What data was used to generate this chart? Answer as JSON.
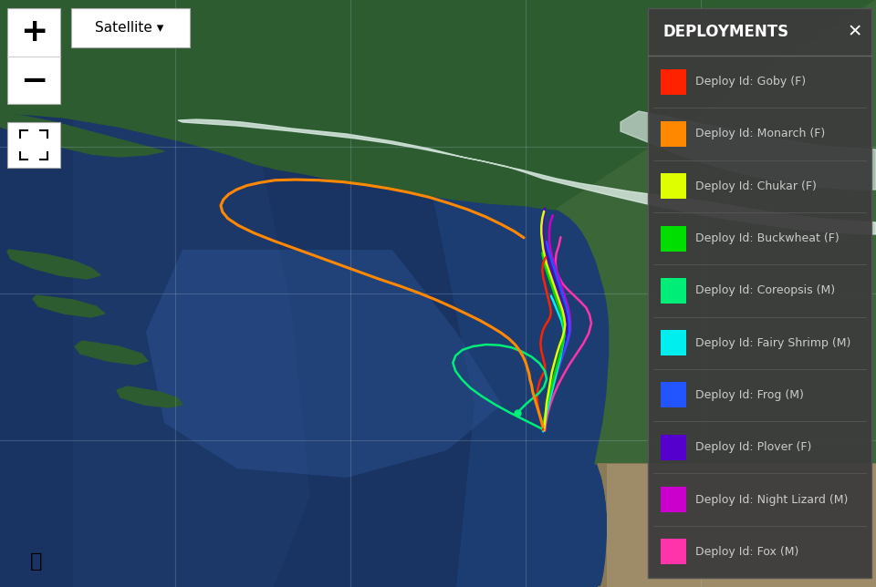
{
  "legend_bg": "#3c3c3c",
  "legend_text_color": "#cccccc",
  "legend_title_color": "#ffffff",
  "entries": [
    {
      "name": "Deploy Id: Goby (F)",
      "color": "#ff2200"
    },
    {
      "name": "Deploy Id: Monarch (F)",
      "color": "#ff8800"
    },
    {
      "name": "Deploy Id: Chukar (F)",
      "color": "#ddff00"
    },
    {
      "name": "Deploy Id: Buckwheat (F)",
      "color": "#00dd00"
    },
    {
      "name": "Deploy Id: Coreopsis (M)",
      "color": "#00ee77"
    },
    {
      "name": "Deploy Id: Fairy Shrimp (M)",
      "color": "#00eeee"
    },
    {
      "name": "Deploy Id: Frog (M)",
      "color": "#2255ff"
    },
    {
      "name": "Deploy Id: Plover (F)",
      "color": "#5500cc"
    },
    {
      "name": "Deploy Id: Night Lizard (M)",
      "color": "#cc00cc"
    },
    {
      "name": "Deploy Id: Fox (M)",
      "color": "#ff33aa"
    }
  ],
  "grid_color": "#aabbcc",
  "grid_alpha": 0.25,
  "ocean_dark": "#1a3a6c",
  "ocean_mid": "#1e4a80",
  "ocean_light": "#2a5a9a",
  "gulf_color": "#243f72",
  "land_ak_color": "#2d5c30",
  "land_bc_color": "#3a6638",
  "land_ca_color": "#8a7055",
  "snow_color": "#dde8e8",
  "ui_bg": "#ffffff",
  "ui_border": "#aaaaaa",
  "monarch_path": {
    "color": "#ff8800",
    "lw": 2.2,
    "x": [
      0.598,
      0.587,
      0.572,
      0.554,
      0.534,
      0.512,
      0.49,
      0.467,
      0.443,
      0.418,
      0.392,
      0.364,
      0.338,
      0.314,
      0.297,
      0.282,
      0.27,
      0.261,
      0.255,
      0.252,
      0.254,
      0.26,
      0.272,
      0.29,
      0.312,
      0.336,
      0.36,
      0.384,
      0.408,
      0.432,
      0.456,
      0.478,
      0.498,
      0.516,
      0.533,
      0.548,
      0.561,
      0.572,
      0.581,
      0.588,
      0.593,
      0.597,
      0.6,
      0.602,
      0.604,
      0.605,
      0.607,
      0.608,
      0.61,
      0.612,
      0.614,
      0.616,
      0.618,
      0.62
    ],
    "y": [
      0.595,
      0.606,
      0.618,
      0.631,
      0.643,
      0.654,
      0.664,
      0.672,
      0.679,
      0.685,
      0.69,
      0.693,
      0.694,
      0.693,
      0.689,
      0.684,
      0.677,
      0.669,
      0.66,
      0.65,
      0.639,
      0.628,
      0.616,
      0.603,
      0.59,
      0.577,
      0.564,
      0.551,
      0.538,
      0.525,
      0.513,
      0.501,
      0.489,
      0.477,
      0.465,
      0.454,
      0.443,
      0.433,
      0.423,
      0.413,
      0.403,
      0.393,
      0.383,
      0.373,
      0.363,
      0.353,
      0.343,
      0.333,
      0.323,
      0.313,
      0.303,
      0.293,
      0.283,
      0.273
    ]
  },
  "coreopsis_path": {
    "color": "#00ee77",
    "lw": 1.8,
    "x": [
      0.618,
      0.61,
      0.598,
      0.582,
      0.565,
      0.55,
      0.537,
      0.527,
      0.52,
      0.517,
      0.52,
      0.528,
      0.54,
      0.555,
      0.57,
      0.584,
      0.596,
      0.607,
      0.616,
      0.622,
      0.624,
      0.621,
      0.615,
      0.607,
      0.6,
      0.594,
      0.591
    ],
    "y": [
      0.27,
      0.276,
      0.285,
      0.297,
      0.311,
      0.325,
      0.339,
      0.354,
      0.368,
      0.382,
      0.394,
      0.404,
      0.41,
      0.413,
      0.412,
      0.408,
      0.401,
      0.392,
      0.381,
      0.368,
      0.354,
      0.341,
      0.33,
      0.32,
      0.311,
      0.302,
      0.296
    ]
  },
  "goby_path": {
    "color": "#ff2200",
    "lw": 1.8,
    "x": [
      0.62,
      0.618,
      0.616,
      0.614,
      0.613,
      0.614,
      0.616,
      0.619,
      0.622,
      0.622,
      0.62,
      0.618,
      0.617,
      0.618,
      0.62,
      0.623,
      0.626,
      0.628,
      0.629,
      0.628,
      0.626,
      0.624,
      0.622,
      0.62,
      0.619,
      0.62,
      0.623
    ],
    "y": [
      0.268,
      0.28,
      0.293,
      0.308,
      0.323,
      0.338,
      0.35,
      0.36,
      0.368,
      0.378,
      0.39,
      0.402,
      0.415,
      0.427,
      0.438,
      0.447,
      0.454,
      0.46,
      0.468,
      0.478,
      0.49,
      0.503,
      0.516,
      0.528,
      0.54,
      0.552,
      0.562
    ]
  },
  "chukar_path": {
    "color": "#ddff00",
    "lw": 1.8,
    "x": [
      0.621,
      0.622,
      0.623,
      0.624,
      0.626,
      0.628,
      0.63,
      0.633,
      0.636,
      0.639,
      0.642,
      0.644,
      0.645,
      0.644,
      0.642,
      0.639,
      0.636,
      0.633,
      0.63,
      0.627,
      0.624,
      0.622,
      0.62,
      0.619,
      0.618,
      0.618,
      0.619,
      0.621
    ],
    "y": [
      0.267,
      0.281,
      0.297,
      0.314,
      0.331,
      0.349,
      0.366,
      0.383,
      0.399,
      0.413,
      0.425,
      0.436,
      0.447,
      0.459,
      0.472,
      0.485,
      0.498,
      0.511,
      0.524,
      0.537,
      0.55,
      0.563,
      0.576,
      0.589,
      0.602,
      0.615,
      0.628,
      0.64
    ]
  },
  "buckwheat_path": {
    "color": "#00dd00",
    "lw": 1.8,
    "x": [
      0.619,
      0.621,
      0.623,
      0.625,
      0.628,
      0.631,
      0.634,
      0.637,
      0.64,
      0.642,
      0.644,
      0.644,
      0.643,
      0.641,
      0.638,
      0.635,
      0.632,
      0.629,
      0.626,
      0.623,
      0.621,
      0.619
    ],
    "y": [
      0.268,
      0.282,
      0.298,
      0.315,
      0.332,
      0.35,
      0.367,
      0.383,
      0.399,
      0.413,
      0.426,
      0.439,
      0.452,
      0.465,
      0.478,
      0.491,
      0.504,
      0.517,
      0.53,
      0.543,
      0.556,
      0.569
    ]
  },
  "fairy_shrimp_path": {
    "color": "#00eeee",
    "lw": 1.8,
    "x": [
      0.62,
      0.622,
      0.624,
      0.627,
      0.63,
      0.633,
      0.636,
      0.639,
      0.641,
      0.643,
      0.644,
      0.643,
      0.641,
      0.638,
      0.635,
      0.632,
      0.629
    ],
    "y": [
      0.265,
      0.28,
      0.297,
      0.315,
      0.333,
      0.351,
      0.369,
      0.386,
      0.402,
      0.416,
      0.429,
      0.441,
      0.453,
      0.464,
      0.475,
      0.486,
      0.496
    ]
  },
  "frog_path": {
    "color": "#2255ff",
    "lw": 1.8,
    "x": [
      0.62,
      0.621,
      0.623,
      0.626,
      0.629,
      0.633,
      0.637,
      0.641,
      0.645,
      0.648,
      0.65,
      0.65,
      0.649,
      0.647,
      0.644,
      0.641,
      0.638,
      0.635,
      0.632,
      0.629,
      0.626,
      0.624
    ],
    "y": [
      0.267,
      0.282,
      0.299,
      0.317,
      0.335,
      0.354,
      0.372,
      0.39,
      0.406,
      0.421,
      0.434,
      0.448,
      0.462,
      0.476,
      0.49,
      0.504,
      0.518,
      0.532,
      0.546,
      0.56,
      0.574,
      0.588
    ]
  },
  "plover_path": {
    "color": "#5500cc",
    "lw": 1.8,
    "x": [
      0.62,
      0.621,
      0.623,
      0.626,
      0.629,
      0.632,
      0.636,
      0.64,
      0.643,
      0.646,
      0.648,
      0.648,
      0.646,
      0.643,
      0.64,
      0.637,
      0.634,
      0.631,
      0.628,
      0.625,
      0.623,
      0.621,
      0.62,
      0.62,
      0.621,
      0.622
    ],
    "y": [
      0.266,
      0.281,
      0.298,
      0.316,
      0.334,
      0.353,
      0.371,
      0.389,
      0.406,
      0.421,
      0.435,
      0.449,
      0.463,
      0.477,
      0.491,
      0.505,
      0.519,
      0.533,
      0.547,
      0.561,
      0.575,
      0.589,
      0.603,
      0.617,
      0.631,
      0.645
    ]
  },
  "night_lizard_path": {
    "color": "#cc00cc",
    "lw": 1.8,
    "x": [
      0.621,
      0.622,
      0.624,
      0.627,
      0.63,
      0.634,
      0.638,
      0.642,
      0.646,
      0.649,
      0.651,
      0.651,
      0.65,
      0.648,
      0.645,
      0.642,
      0.639,
      0.636,
      0.633,
      0.63,
      0.628,
      0.627,
      0.627,
      0.628,
      0.631
    ],
    "y": [
      0.267,
      0.282,
      0.299,
      0.317,
      0.336,
      0.355,
      0.374,
      0.392,
      0.409,
      0.424,
      0.438,
      0.452,
      0.466,
      0.48,
      0.494,
      0.508,
      0.522,
      0.536,
      0.55,
      0.564,
      0.578,
      0.592,
      0.606,
      0.62,
      0.633
    ]
  },
  "fox_path": {
    "color": "#ff33aa",
    "lw": 1.8,
    "x": [
      0.622,
      0.623,
      0.625,
      0.628,
      0.632,
      0.637,
      0.643,
      0.65,
      0.658,
      0.666,
      0.672,
      0.675,
      0.673,
      0.669,
      0.662,
      0.655,
      0.648,
      0.642,
      0.638,
      0.635,
      0.634,
      0.635,
      0.638,
      0.64
    ],
    "y": [
      0.266,
      0.279,
      0.294,
      0.31,
      0.327,
      0.344,
      0.361,
      0.379,
      0.397,
      0.415,
      0.432,
      0.449,
      0.464,
      0.476,
      0.487,
      0.497,
      0.507,
      0.517,
      0.528,
      0.54,
      0.554,
      0.568,
      0.582,
      0.596
    ]
  }
}
